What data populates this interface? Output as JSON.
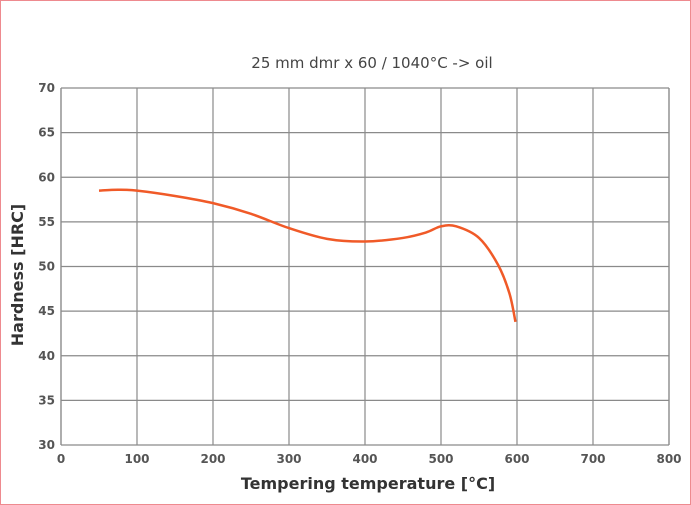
{
  "chart_data": {
    "type": "line",
    "title": "25 mm dmr x 60 / 1040°C -> oil",
    "xlabel": "Tempering temperature [°C]",
    "ylabel": "Hardness [HRC]",
    "xlim": [
      0,
      800
    ],
    "ylim": [
      30,
      70
    ],
    "xticks": [
      "0",
      "100",
      "200",
      "300",
      "400",
      "500",
      "600",
      "700",
      "800"
    ],
    "yticks": [
      "30",
      "35",
      "40",
      "45",
      "50",
      "55",
      "60",
      "65",
      "70"
    ],
    "grid": true,
    "series": [
      {
        "name": "Hardness",
        "color": "#f05a28",
        "x": [
          50,
          75,
          100,
          150,
          200,
          250,
          300,
          350,
          400,
          450,
          480,
          500,
          520,
          550,
          575,
          590,
          598
        ],
        "y": [
          58.5,
          58.6,
          58.5,
          57.9,
          57.1,
          55.9,
          54.3,
          53.1,
          52.8,
          53.2,
          53.8,
          54.5,
          54.5,
          53.2,
          50.2,
          47.0,
          43.8
        ]
      }
    ]
  }
}
